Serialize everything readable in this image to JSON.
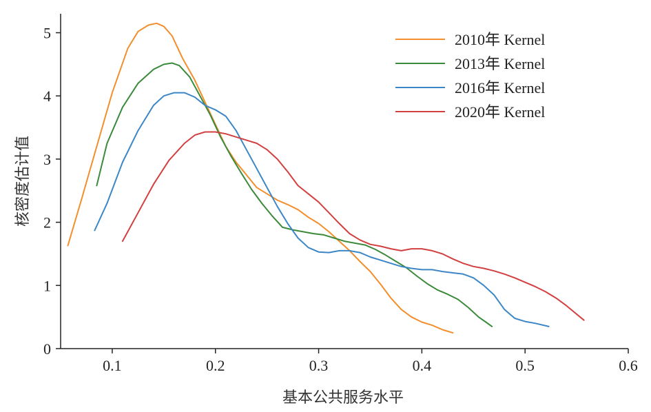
{
  "chart_data": {
    "type": "line",
    "title": "",
    "xlabel": "基本公共服务水平",
    "ylabel": "核密度估计值",
    "xlim": [
      0.05,
      0.6
    ],
    "ylim": [
      0,
      5.3
    ],
    "xticks": [
      0.1,
      0.2,
      0.3,
      0.4,
      0.5,
      0.6
    ],
    "yticks": [
      0,
      1,
      2,
      3,
      4,
      5
    ],
    "grid": false,
    "legend_position": "top-right",
    "series": [
      {
        "name": "2010年 Kernel",
        "color": "#f28e2b",
        "x": [
          0.057,
          0.07,
          0.085,
          0.1,
          0.115,
          0.125,
          0.135,
          0.143,
          0.15,
          0.158,
          0.168,
          0.18,
          0.19,
          0.2,
          0.21,
          0.22,
          0.23,
          0.24,
          0.25,
          0.26,
          0.27,
          0.28,
          0.29,
          0.3,
          0.31,
          0.32,
          0.33,
          0.34,
          0.35,
          0.36,
          0.37,
          0.38,
          0.39,
          0.4,
          0.41,
          0.42,
          0.43
        ],
        "y": [
          1.63,
          2.35,
          3.2,
          4.05,
          4.75,
          5.02,
          5.12,
          5.15,
          5.1,
          4.95,
          4.6,
          4.25,
          3.9,
          3.55,
          3.2,
          2.95,
          2.75,
          2.55,
          2.45,
          2.35,
          2.28,
          2.2,
          2.08,
          1.98,
          1.85,
          1.7,
          1.55,
          1.38,
          1.22,
          1.02,
          0.8,
          0.62,
          0.5,
          0.42,
          0.37,
          0.3,
          0.25
        ]
      },
      {
        "name": "2013年 Kernel",
        "color": "#3a8a3a",
        "x": [
          0.085,
          0.095,
          0.11,
          0.125,
          0.14,
          0.15,
          0.158,
          0.165,
          0.175,
          0.185,
          0.195,
          0.205,
          0.215,
          0.225,
          0.235,
          0.245,
          0.255,
          0.265,
          0.275,
          0.285,
          0.295,
          0.305,
          0.315,
          0.325,
          0.335,
          0.345,
          0.355,
          0.365,
          0.375,
          0.385,
          0.395,
          0.405,
          0.415,
          0.425,
          0.435,
          0.445,
          0.455,
          0.462,
          0.468
        ],
        "y": [
          2.58,
          3.25,
          3.82,
          4.2,
          4.42,
          4.5,
          4.52,
          4.48,
          4.3,
          4.0,
          3.7,
          3.35,
          3.05,
          2.78,
          2.52,
          2.3,
          2.1,
          1.92,
          1.88,
          1.85,
          1.82,
          1.8,
          1.75,
          1.7,
          1.67,
          1.64,
          1.57,
          1.48,
          1.38,
          1.28,
          1.15,
          1.03,
          0.93,
          0.86,
          0.78,
          0.65,
          0.5,
          0.42,
          0.35
        ]
      },
      {
        "name": "2016年 Kernel",
        "color": "#3b86c6",
        "x": [
          0.083,
          0.095,
          0.11,
          0.125,
          0.14,
          0.15,
          0.16,
          0.17,
          0.18,
          0.19,
          0.2,
          0.21,
          0.22,
          0.23,
          0.24,
          0.25,
          0.26,
          0.27,
          0.28,
          0.29,
          0.3,
          0.31,
          0.32,
          0.33,
          0.34,
          0.35,
          0.36,
          0.37,
          0.38,
          0.39,
          0.4,
          0.41,
          0.42,
          0.43,
          0.44,
          0.45,
          0.46,
          0.47,
          0.48,
          0.49,
          0.5,
          0.51,
          0.523
        ],
        "y": [
          1.87,
          2.3,
          2.95,
          3.45,
          3.85,
          4.0,
          4.05,
          4.05,
          3.98,
          3.85,
          3.78,
          3.68,
          3.45,
          3.15,
          2.85,
          2.55,
          2.25,
          1.98,
          1.75,
          1.6,
          1.53,
          1.52,
          1.55,
          1.55,
          1.52,
          1.45,
          1.4,
          1.35,
          1.3,
          1.27,
          1.25,
          1.25,
          1.22,
          1.2,
          1.18,
          1.12,
          1.0,
          0.85,
          0.62,
          0.48,
          0.43,
          0.4,
          0.35
        ]
      },
      {
        "name": "2020年 Kernel",
        "color": "#d23f3f",
        "x": [
          0.11,
          0.125,
          0.14,
          0.155,
          0.17,
          0.18,
          0.19,
          0.2,
          0.21,
          0.22,
          0.23,
          0.24,
          0.25,
          0.26,
          0.27,
          0.28,
          0.29,
          0.3,
          0.31,
          0.32,
          0.33,
          0.34,
          0.35,
          0.36,
          0.37,
          0.38,
          0.39,
          0.4,
          0.41,
          0.42,
          0.43,
          0.44,
          0.45,
          0.46,
          0.47,
          0.48,
          0.49,
          0.5,
          0.51,
          0.52,
          0.53,
          0.54,
          0.557
        ],
        "y": [
          1.7,
          2.15,
          2.6,
          2.98,
          3.25,
          3.38,
          3.43,
          3.43,
          3.4,
          3.35,
          3.3,
          3.25,
          3.15,
          3.0,
          2.8,
          2.58,
          2.45,
          2.32,
          2.15,
          1.98,
          1.82,
          1.72,
          1.65,
          1.62,
          1.58,
          1.55,
          1.58,
          1.58,
          1.55,
          1.5,
          1.42,
          1.35,
          1.3,
          1.27,
          1.23,
          1.18,
          1.12,
          1.05,
          0.98,
          0.9,
          0.8,
          0.68,
          0.45
        ]
      }
    ]
  }
}
